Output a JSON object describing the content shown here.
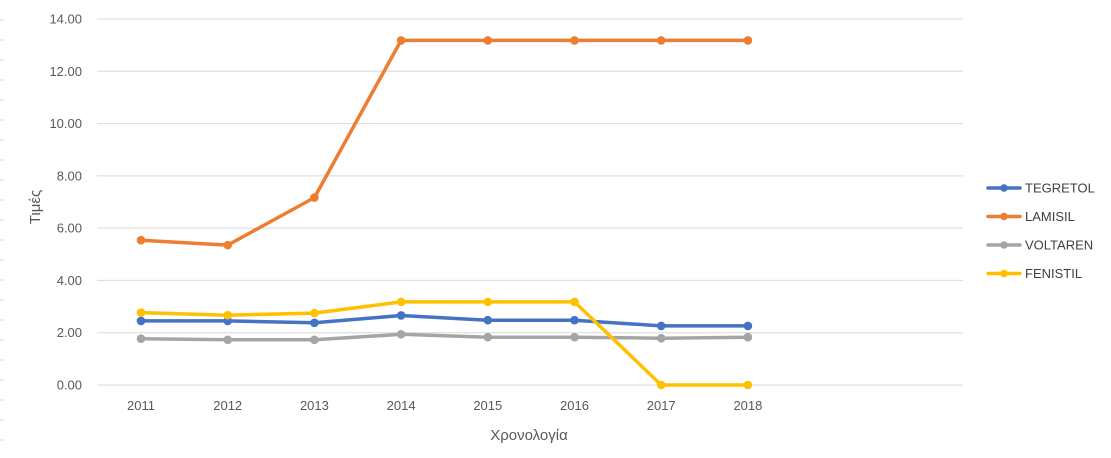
{
  "chart_data": {
    "type": "line",
    "title": "",
    "xlabel": "Χρονολογία",
    "ylabel": "Τιμές",
    "categories": [
      "2011",
      "2012",
      "2013",
      "2014",
      "2015",
      "2016",
      "2017",
      "2018"
    ],
    "ylim": [
      0,
      14
    ],
    "yticks": [
      "0.00",
      "2.00",
      "4.00",
      "6.00",
      "8.00",
      "10.00",
      "12.00",
      "14.00"
    ],
    "grid": true,
    "legend_position": "right",
    "series": [
      {
        "name": "TEGRETOL",
        "color": "#4472c4",
        "values": [
          2.45,
          2.45,
          2.38,
          2.66,
          2.48,
          2.48,
          2.26,
          2.26
        ]
      },
      {
        "name": "LAMISIL",
        "color": "#ed7d31",
        "values": [
          5.54,
          5.35,
          7.17,
          13.18,
          13.18,
          13.18,
          13.18,
          13.18
        ]
      },
      {
        "name": "VOLTAREN",
        "color": "#a5a5a5",
        "values": [
          1.77,
          1.73,
          1.73,
          1.94,
          1.83,
          1.83,
          1.79,
          1.83
        ]
      },
      {
        "name": "FENISTIL",
        "color": "#ffc000",
        "values": [
          2.77,
          2.67,
          2.75,
          3.18,
          3.18,
          3.18,
          0.0,
          0.0
        ]
      }
    ]
  }
}
